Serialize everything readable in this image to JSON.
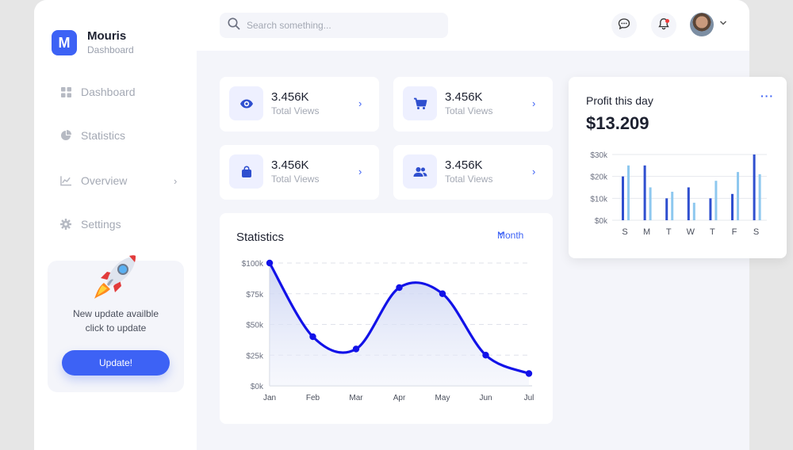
{
  "brand": {
    "name": "Mouris",
    "subtitle": "Dashboard",
    "logo_letter": "M"
  },
  "sidebar": {
    "items": [
      {
        "label": "Dashboard",
        "icon": "grid-icon"
      },
      {
        "label": "Statistics",
        "icon": "pie-chart-icon"
      },
      {
        "label": "Overview",
        "icon": "line-chart-icon"
      },
      {
        "label": "Settings",
        "icon": "gear-icon"
      }
    ],
    "update_card": {
      "line1": "New update availble",
      "line2": "click to update",
      "button_label": "Update!",
      "icon": "rocket-icon"
    }
  },
  "topbar": {
    "search_placeholder": "Search something...",
    "icons": [
      "search-icon",
      "chat-icon",
      "bell-icon",
      "avatar",
      "chevron-down-icon"
    ]
  },
  "stat_cards": [
    {
      "value": "3.456K",
      "label": "Total Views",
      "icon": "eye-icon"
    },
    {
      "value": "3.456K",
      "label": "Total Views",
      "icon": "cart-icon"
    },
    {
      "value": "3.456K",
      "label": "Total Views",
      "icon": "shopping-bag-icon"
    },
    {
      "value": "3.456K",
      "label": "Total Views",
      "icon": "users-icon"
    }
  ],
  "statistics": {
    "title": "Statistics",
    "period": "Month"
  },
  "profit": {
    "title": "Profit this day",
    "value": "$13.209",
    "more_icon": "more-dots-icon"
  },
  "colors": {
    "accent": "#3d62f5",
    "line": "#1212e8",
    "bar_dark": "#2f4fcf",
    "bar_light": "#8ec8ef",
    "background": "#f4f5fa"
  },
  "chart_data": [
    {
      "type": "area",
      "categories": [
        "Jan",
        "Feb",
        "Mar",
        "Apr",
        "May",
        "Jun",
        "Jul"
      ],
      "series": [
        {
          "values": [
            100,
            40,
            30,
            80,
            75,
            25,
            10
          ]
        }
      ],
      "y_ticks": [
        "$0k",
        "$25k",
        "$50k",
        "$75k",
        "$100k"
      ],
      "ylim": [
        0,
        100
      ],
      "grid": true
    },
    {
      "type": "bar",
      "categories": [
        "S",
        "M",
        "T",
        "W",
        "T",
        "F",
        "S"
      ],
      "series": [
        {
          "values": [
            20,
            25,
            10,
            15,
            10,
            12,
            30
          ]
        },
        {
          "values": [
            25,
            15,
            13,
            8,
            18,
            22,
            21
          ]
        }
      ],
      "y_ticks": [
        "$0k",
        "$10k",
        "$20k",
        "$30k"
      ],
      "ylim": [
        0,
        30
      ],
      "grid": true
    }
  ]
}
